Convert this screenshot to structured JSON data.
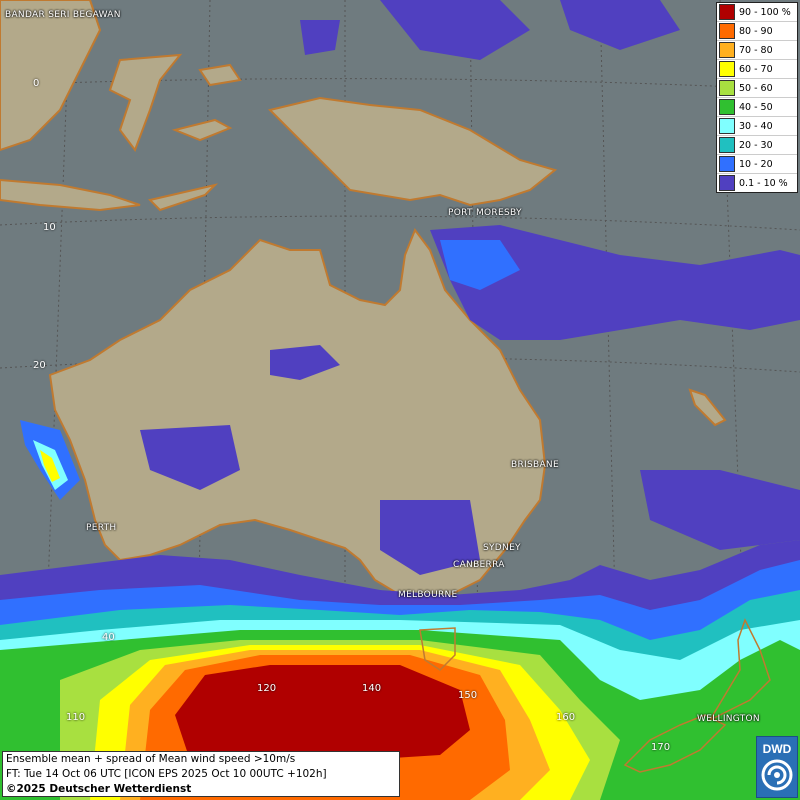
{
  "legend": {
    "items": [
      {
        "label": "90 - 100 %",
        "color": "#b00000"
      },
      {
        "label": "80 - 90",
        "color": "#ff6a00"
      },
      {
        "label": "70 - 80",
        "color": "#ffb020"
      },
      {
        "label": "60 - 70",
        "color": "#ffff00"
      },
      {
        "label": "50 - 60",
        "color": "#a8e040"
      },
      {
        "label": "40 - 50",
        "color": "#30c030"
      },
      {
        "label": "30 - 40",
        "color": "#80ffff"
      },
      {
        "label": "20 - 30",
        "color": "#20c0c0"
      },
      {
        "label": "10 - 20",
        "color": "#3070ff"
      },
      {
        "label": "0.1 - 10 %",
        "color": "#5040c0"
      }
    ]
  },
  "places": {
    "bandar": "BANDAR SERI BEGAWAN",
    "port_moresby": "PORT MORESBY",
    "brisbane": "BRISBANE",
    "perth": "PERTH",
    "sydney": "SYDNEY",
    "canberra": "CANBERRA",
    "melbourne": "MELBOURNE",
    "wellington": "WELLINGTON"
  },
  "grid_labels": {
    "lat0": "0",
    "lat10": "10",
    "lat20": "20",
    "lat40": "40",
    "lon110": "110",
    "lon120": "120",
    "lon140": "140",
    "lon150": "150",
    "lon160": "160",
    "lon170": "170"
  },
  "info": {
    "line1": "Ensemble mean + spread of Mean wind speed >10m/s",
    "line2": "FT: Tue 14 Oct 06 UTC [ICON EPS 2025 Oct 10 00UTC +102h]",
    "line3": "©2025 Deutscher Wetterdienst"
  },
  "logo": {
    "text": "DWD"
  },
  "colors": {
    "ocean": "#6f7b7f",
    "land": "#b3a98a",
    "coast": "#c07a30"
  }
}
